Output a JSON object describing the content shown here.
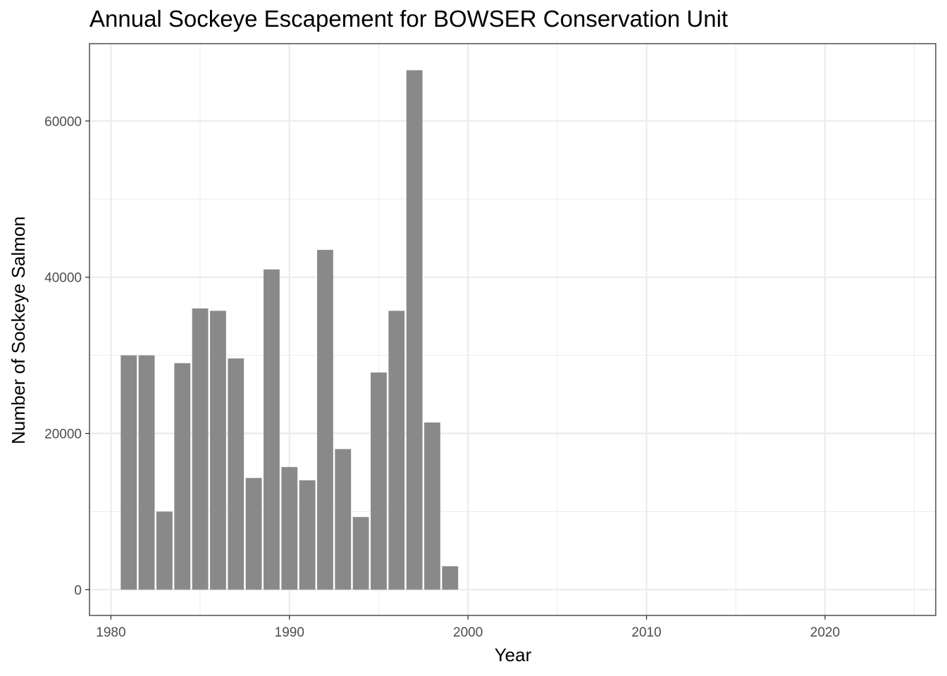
{
  "chart_data": {
    "type": "bar",
    "title": "Annual Sockeye Escapement for BOWSER Conservation Unit",
    "xlabel": "Year",
    "ylabel": "Number of Sockeye Salmon",
    "x": [
      1981,
      1982,
      1983,
      1984,
      1985,
      1986,
      1987,
      1988,
      1989,
      1990,
      1991,
      1992,
      1993,
      1994,
      1995,
      1996,
      1997,
      1998,
      1999
    ],
    "values": [
      30000,
      30000,
      10000,
      29000,
      36000,
      35700,
      29600,
      14300,
      41000,
      15700,
      14000,
      43500,
      18000,
      9300,
      27800,
      35700,
      66500,
      21400,
      3000
    ],
    "xlim": [
      1978.8,
      2026.2
    ],
    "ylim": [
      -3300,
      69900
    ],
    "x_ticks": [
      1980,
      1990,
      2000,
      2010,
      2020
    ],
    "x_tick_labels": [
      "1980",
      "1990",
      "2000",
      "2010",
      "2020"
    ],
    "y_ticks": [
      0,
      20000,
      40000,
      60000
    ],
    "y_tick_labels": [
      "0",
      "20000",
      "40000",
      "60000"
    ],
    "grid": true,
    "bar_color": "#898989",
    "grid_color": "#ebebeb",
    "panel_border_color": "#333333"
  }
}
